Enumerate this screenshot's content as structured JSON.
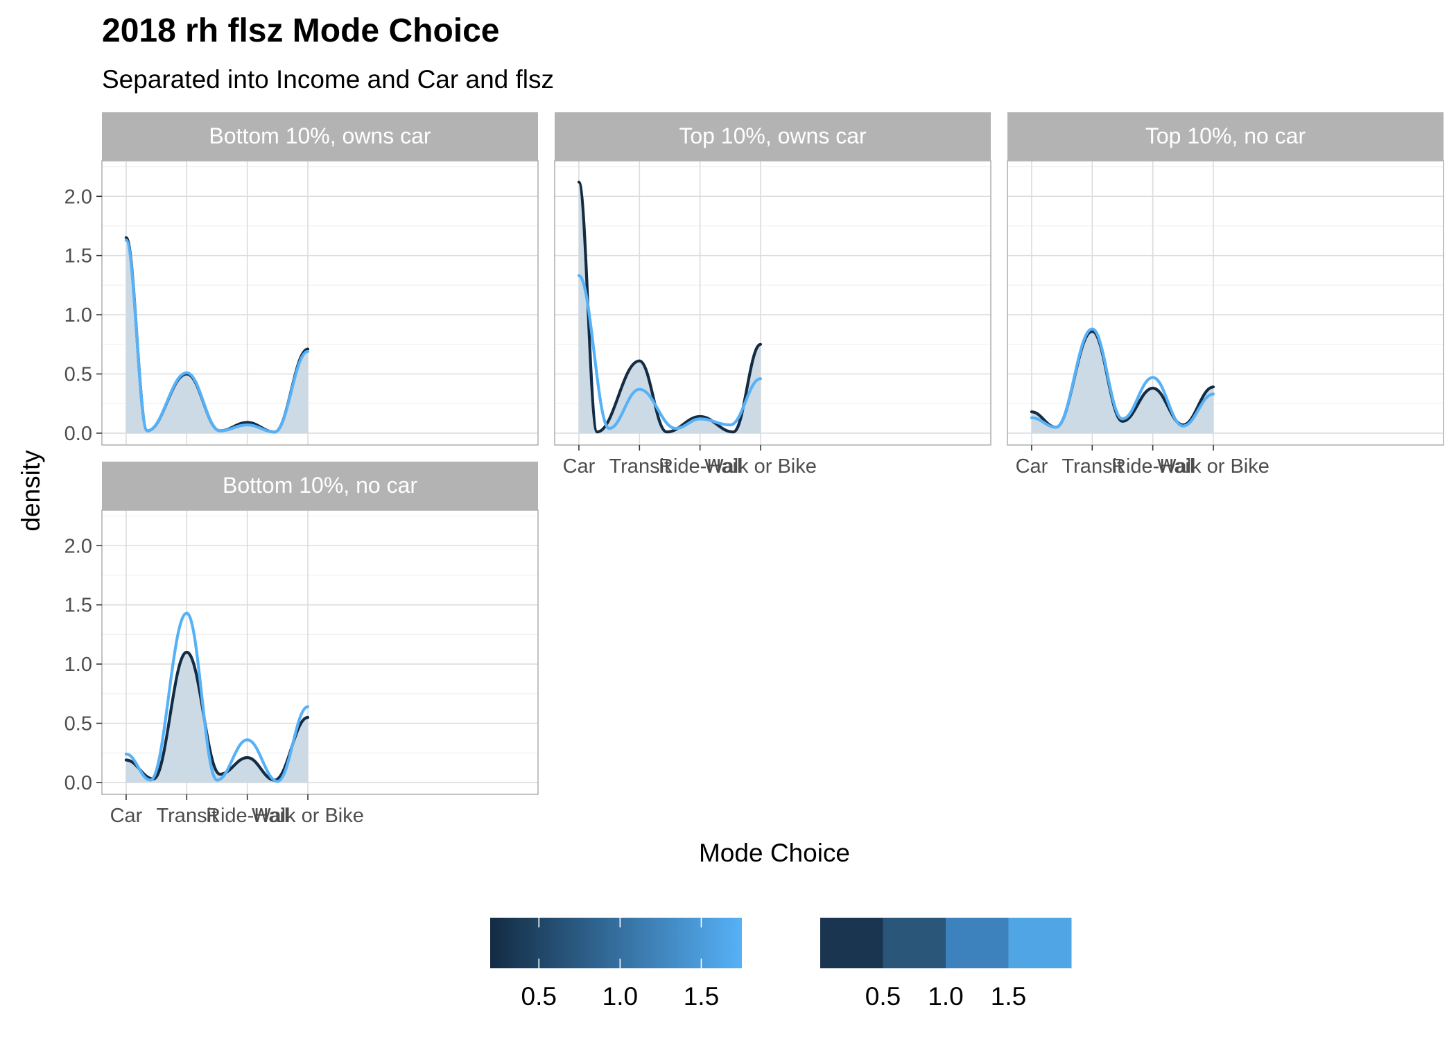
{
  "chart_data": {
    "type": "area",
    "title": "2018 rh flsz Mode Choice",
    "subtitle": "Separated into Income and Car and flsz",
    "xlabel": "Mode Choice",
    "ylabel": "density",
    "categories": [
      "Car",
      "Transit",
      "Ride-Hail",
      "Walk or Bike"
    ],
    "ylim": [
      -0.1,
      2.3
    ],
    "yticks": [
      "0.0",
      "0.5",
      "1.0",
      "1.5",
      "2.0"
    ],
    "grid": true,
    "facets": [
      {
        "label": "Bottom 10%, owns car",
        "series": [
          {
            "color": "#132B43",
            "points": [
              [
                1,
                1.65
              ],
              [
                1.35,
                0.02
              ],
              [
                2,
                0.5
              ],
              [
                2.55,
                0.02
              ],
              [
                3,
                0.09
              ],
              [
                3.45,
                0.01
              ],
              [
                4,
                0.71
              ]
            ]
          },
          {
            "color": "#56B1F7",
            "points": [
              [
                1,
                1.63
              ],
              [
                1.35,
                0.02
              ],
              [
                2,
                0.51
              ],
              [
                2.55,
                0.02
              ],
              [
                3,
                0.07
              ],
              [
                3.45,
                0.01
              ],
              [
                4,
                0.69
              ]
            ]
          }
        ]
      },
      {
        "label": "Top 10%, owns car",
        "series": [
          {
            "color": "#132B43",
            "points": [
              [
                1,
                2.12
              ],
              [
                1.3,
                0.01
              ],
              [
                2,
                0.61
              ],
              [
                2.45,
                0.01
              ],
              [
                3,
                0.14
              ],
              [
                3.55,
                0.01
              ],
              [
                4,
                0.75
              ]
            ]
          },
          {
            "color": "#56B1F7",
            "points": [
              [
                1,
                1.33
              ],
              [
                1.5,
                0.04
              ],
              [
                2,
                0.37
              ],
              [
                2.6,
                0.04
              ],
              [
                3,
                0.12
              ],
              [
                3.5,
                0.07
              ],
              [
                4,
                0.46
              ]
            ]
          }
        ]
      },
      {
        "label": "Top 10%, no car",
        "series": [
          {
            "color": "#132B43",
            "points": [
              [
                1,
                0.18
              ],
              [
                1.4,
                0.05
              ],
              [
                2,
                0.86
              ],
              [
                2.5,
                0.1
              ],
              [
                3,
                0.38
              ],
              [
                3.5,
                0.07
              ],
              [
                4,
                0.39
              ]
            ]
          },
          {
            "color": "#56B1F7",
            "points": [
              [
                1,
                0.13
              ],
              [
                1.4,
                0.05
              ],
              [
                2,
                0.88
              ],
              [
                2.5,
                0.12
              ],
              [
                3,
                0.47
              ],
              [
                3.5,
                0.06
              ],
              [
                4,
                0.33
              ]
            ]
          }
        ]
      },
      {
        "label": "Bottom 10%, no car",
        "series": [
          {
            "color": "#132B43",
            "points": [
              [
                1,
                0.19
              ],
              [
                1.45,
                0.03
              ],
              [
                2,
                1.1
              ],
              [
                2.55,
                0.07
              ],
              [
                3,
                0.21
              ],
              [
                3.45,
                0.02
              ],
              [
                4,
                0.55
              ]
            ]
          },
          {
            "color": "#56B1F7",
            "points": [
              [
                1,
                0.24
              ],
              [
                1.4,
                0.02
              ],
              [
                2,
                1.43
              ],
              [
                2.5,
                0.02
              ],
              [
                3,
                0.36
              ],
              [
                3.5,
                0.01
              ],
              [
                4,
                0.64
              ]
            ]
          }
        ]
      }
    ],
    "legend": {
      "placement": "bottom",
      "colorbar": {
        "from": "#132B43",
        "to": "#56B1F7",
        "labels": [
          "0.5",
          "1.0",
          "1.5"
        ]
      },
      "colorsteps": {
        "colors": [
          "#1A3550",
          "#2A567A",
          "#3E82BD",
          "#50A5E5"
        ],
        "labels": [
          "0.5",
          "1.0",
          "1.5"
        ]
      }
    }
  }
}
